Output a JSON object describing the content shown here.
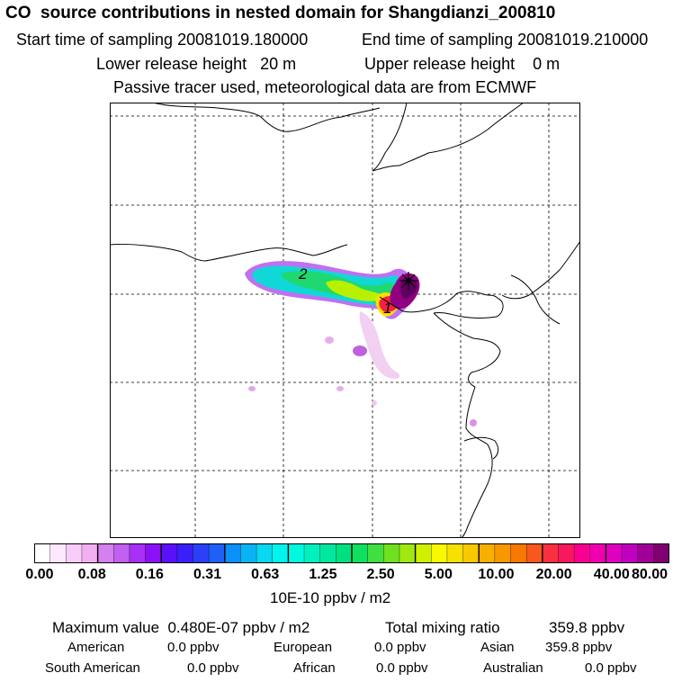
{
  "title": "CO  source contributions in nested domain for Shangdianzi_200810",
  "header": {
    "start": "Start time of sampling 20081019.180000",
    "end": "End time of sampling 20081019.210000",
    "lower": "Lower release height   20 m",
    "upper": "Upper release height    0 m",
    "tracer": "Passive tracer used, meteorological data are from ECMWF"
  },
  "map": {
    "labels": [
      "2",
      "1"
    ],
    "receptor_marker": "asterisk"
  },
  "colorbar": {
    "ticks": [
      "0.00",
      "0.08",
      "0.16",
      "0.31",
      "0.63",
      "1.25",
      "2.50",
      "5.00",
      "10.00",
      "20.00",
      "40.00",
      "80.00"
    ],
    "colors": [
      "#ffffff",
      "#fde8fd",
      "#f8ccf8",
      "#f2b0f2",
      "#d580ec",
      "#c060f0",
      "#a830f4",
      "#8a10f8",
      "#5a10f8",
      "#3a20f8",
      "#2a40f8",
      "#1e60f8",
      "#0a90f8",
      "#0ab4f4",
      "#08d8f0",
      "#00f4ec",
      "#00f8e0",
      "#00f0c0",
      "#00e8a0",
      "#00e080",
      "#10e060",
      "#40e040",
      "#70e020",
      "#a0e810",
      "#d0f000",
      "#f8f800",
      "#f8e000",
      "#f8c800",
      "#f8b000",
      "#f89800",
      "#f87800",
      "#f85820",
      "#f83040",
      "#f81860",
      "#f80090",
      "#f000b0",
      "#e000c0",
      "#c000c0",
      "#a00098",
      "#800070"
    ],
    "unit": "10E-10 ppbv / m2"
  },
  "stats": {
    "max": "Maximum value  0.480E-07 ppbv / m2",
    "total_label": "Total mixing ratio",
    "total_value": "359.8 ppbv",
    "american_label": "American",
    "american_value": "0.0 ppbv",
    "european_label": "European",
    "european_value": "0.0 ppbv",
    "asian_label": "Asian",
    "asian_value": "359.8 ppbv",
    "south_american_label": "South American",
    "south_american_value": "0.0 ppbv",
    "african_label": "African",
    "african_value": "0.0 ppbv",
    "australian_label": "Australian",
    "australian_value": "0.0 ppbv"
  }
}
